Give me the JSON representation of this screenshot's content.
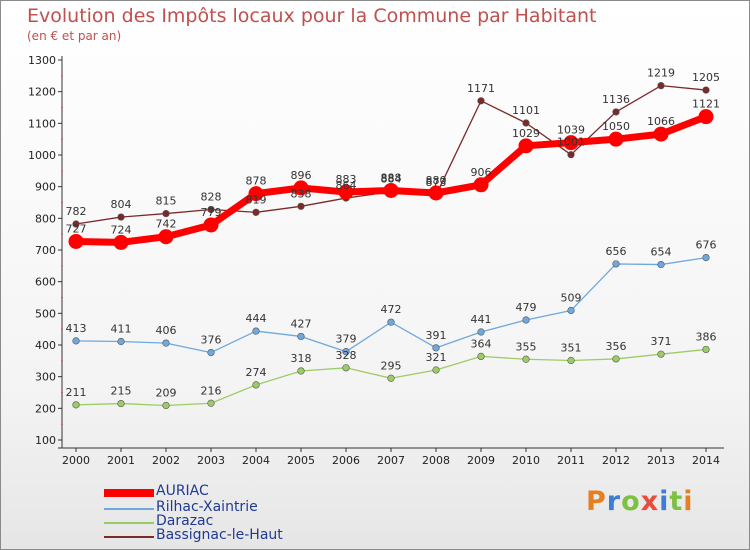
{
  "title": "Evolution des Impôts locaux pour la Commune par Habitant",
  "subtitle": "(en € et par an)",
  "logo": {
    "text": "Proxiti",
    "letters": [
      "P",
      "r",
      "o",
      "x",
      "i",
      "t",
      "i"
    ],
    "colors": [
      "#e67e22",
      "#3b7dd8",
      "#7cc242",
      "#e74c3c",
      "#3b7dd8",
      "#7cc242",
      "#e67e22"
    ]
  },
  "chart_data": {
    "type": "line",
    "title": "Evolution des Impôts locaux pour la Commune par Habitant",
    "subtitle": "(en € et par an)",
    "xlabel": "",
    "ylabel": "",
    "ylim": [
      100,
      1300
    ],
    "yticks": [
      100,
      200,
      300,
      400,
      500,
      600,
      700,
      800,
      900,
      1000,
      1100,
      1200,
      1300
    ],
    "x": [
      "2000",
      "2001",
      "2002",
      "2003",
      "2004",
      "2005",
      "2006",
      "2007",
      "2008",
      "2009",
      "2010",
      "2011",
      "2012",
      "2013",
      "2014"
    ],
    "series": [
      {
        "name": "AURIAC",
        "color": "#ff0000",
        "values": [
          727,
          724,
          742,
          779,
          878,
          896,
          883,
          888,
          880,
          906,
          1029,
          1039,
          1050,
          1066,
          1121
        ]
      },
      {
        "name": "Rilhac-Xaintrie",
        "color": "#6fa8dc",
        "values": [
          413,
          411,
          406,
          376,
          444,
          427,
          379,
          472,
          391,
          441,
          479,
          509,
          656,
          654,
          676
        ]
      },
      {
        "name": "Darazac",
        "color": "#9ccc65",
        "values": [
          211,
          215,
          209,
          216,
          274,
          318,
          328,
          295,
          321,
          364,
          355,
          351,
          356,
          371,
          386
        ]
      },
      {
        "name": "Bassignac-le-Haut",
        "color": "#7a2a2a",
        "values": [
          782,
          804,
          815,
          828,
          819,
          838,
          864,
          884,
          873,
          1171,
          1101,
          1001,
          1136,
          1219,
          1205
        ]
      }
    ],
    "legend_position": "bottom-left",
    "grid": false
  }
}
